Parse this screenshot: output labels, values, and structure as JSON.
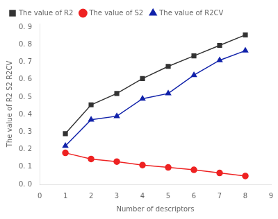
{
  "chart_data": {
    "type": "line",
    "xlabel": "Number of descriptors",
    "ylabel": "The value of R2 S2 R2CV",
    "x": [
      1,
      2,
      3,
      4,
      5,
      6,
      7,
      8
    ],
    "series": [
      {
        "name": "The value of R2",
        "color": "#333333",
        "marker": "square",
        "values": [
          0.29,
          0.455,
          0.52,
          0.605,
          0.675,
          0.735,
          0.795,
          0.855
        ]
      },
      {
        "name": "The value of S2",
        "color": "#ee2222",
        "marker": "circle",
        "values": [
          0.18,
          0.145,
          0.13,
          0.11,
          0.097,
          0.083,
          0.065,
          0.048
        ]
      },
      {
        "name": "The value of R2CV",
        "color": "#1122aa",
        "marker": "triangle",
        "values": [
          0.22,
          0.37,
          0.39,
          0.49,
          0.52,
          0.625,
          0.71,
          0.765
        ]
      }
    ],
    "xlim": [
      0,
      9
    ],
    "ylim": [
      0.0,
      0.92
    ],
    "xticks": [
      0,
      1,
      2,
      3,
      4,
      5,
      6,
      7,
      8,
      9
    ],
    "yticks": [
      {
        "value": 0.0,
        "label": "0. 0"
      },
      {
        "value": 0.1,
        "label": "0. 1"
      },
      {
        "value": 0.2,
        "label": "0. 2"
      },
      {
        "value": 0.3,
        "label": "0. 3"
      },
      {
        "value": 0.4,
        "label": "0. 4"
      },
      {
        "value": 0.5,
        "label": "0. 5"
      },
      {
        "value": 0.6,
        "label": "0. 6"
      },
      {
        "value": 0.7,
        "label": "0. 7"
      },
      {
        "value": 0.8,
        "label": "0. 8"
      },
      {
        "value": 0.9,
        "label": "0. 9"
      }
    ],
    "grid": false,
    "legend": "upper left"
  }
}
